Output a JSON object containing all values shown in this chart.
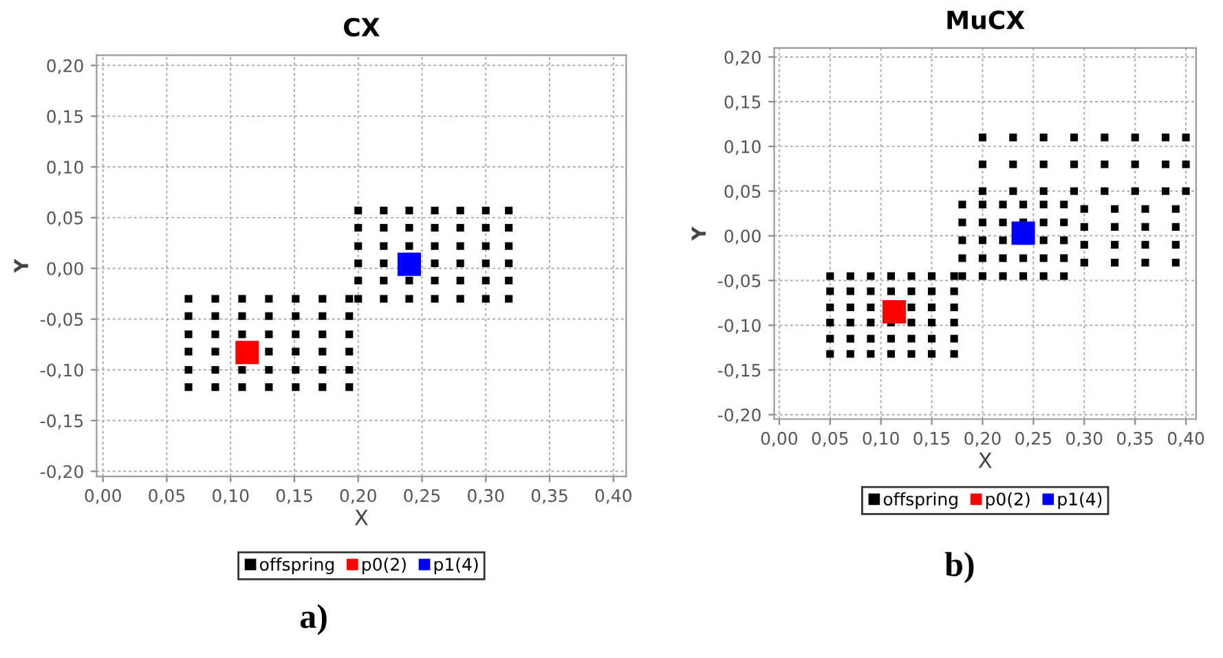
{
  "chart_data": [
    {
      "type": "scatter",
      "title": "CX",
      "xlabel": "X",
      "ylabel": "Y",
      "xlim": [
        -0.005,
        0.41
      ],
      "ylim": [
        -0.205,
        0.21
      ],
      "xticks": [
        {
          "value": 0,
          "label": "0,00"
        },
        {
          "value": 0.05,
          "label": "0,05"
        },
        {
          "value": 0.1,
          "label": "0,10"
        },
        {
          "value": 0.15,
          "label": "0,15"
        },
        {
          "value": 0.2,
          "label": "0,20"
        },
        {
          "value": 0.25,
          "label": "0,25"
        },
        {
          "value": 0.3,
          "label": "0,30"
        },
        {
          "value": 0.35,
          "label": "0,35"
        },
        {
          "value": 0.4,
          "label": "0,40"
        }
      ],
      "yticks": [
        {
          "value": -0.2,
          "label": "-0,20"
        },
        {
          "value": -0.15,
          "label": "-0,15"
        },
        {
          "value": -0.1,
          "label": "-0,10"
        },
        {
          "value": -0.05,
          "label": "-0,05"
        },
        {
          "value": 0,
          "label": "0,00"
        },
        {
          "value": 0.05,
          "label": "0,05"
        },
        {
          "value": 0.1,
          "label": "0,10"
        },
        {
          "value": 0.15,
          "label": "0,15"
        },
        {
          "value": 0.2,
          "label": "0,20"
        }
      ],
      "grid": true,
      "legend": "bottom",
      "marker": "square",
      "annotations": [
        "a)"
      ],
      "series": [
        {
          "name": "offspring",
          "color": "#000000",
          "x": [
            0.067,
            0.088,
            0.109,
            0.13,
            0.151,
            0.172,
            0.193,
            0.067,
            0.088,
            0.109,
            0.13,
            0.151,
            0.172,
            0.193,
            0.067,
            0.088,
            0.13,
            0.151,
            0.172,
            0.193,
            0.067,
            0.088,
            0.109,
            0.13,
            0.151,
            0.172,
            0.193,
            0.067,
            0.088,
            0.109,
            0.13,
            0.151,
            0.172,
            0.193,
            0.067,
            0.088,
            0.109,
            0.13,
            0.151,
            0.172,
            0.193,
            0.2,
            0.22,
            0.24,
            0.26,
            0.28,
            0.3,
            0.318,
            0.2,
            0.22,
            0.24,
            0.26,
            0.28,
            0.3,
            0.318,
            0.2,
            0.22,
            0.26,
            0.28,
            0.3,
            0.318,
            0.2,
            0.22,
            0.24,
            0.26,
            0.28,
            0.3,
            0.318,
            0.2,
            0.22,
            0.24,
            0.26,
            0.28,
            0.3,
            0.318,
            0.2,
            0.22,
            0.24,
            0.26,
            0.28,
            0.3,
            0.318
          ],
          "values": [
            -0.117,
            -0.117,
            -0.117,
            -0.117,
            -0.117,
            -0.117,
            -0.117,
            -0.1,
            -0.1,
            -0.1,
            -0.1,
            -0.1,
            -0.1,
            -0.1,
            -0.082,
            -0.082,
            -0.082,
            -0.082,
            -0.082,
            -0.082,
            -0.065,
            -0.065,
            -0.065,
            -0.065,
            -0.065,
            -0.065,
            -0.065,
            -0.047,
            -0.047,
            -0.047,
            -0.047,
            -0.047,
            -0.047,
            -0.047,
            -0.03,
            -0.03,
            -0.03,
            -0.03,
            -0.03,
            -0.03,
            -0.03,
            -0.03,
            -0.03,
            -0.03,
            -0.03,
            -0.03,
            -0.03,
            -0.03,
            -0.012,
            -0.012,
            -0.012,
            -0.012,
            -0.012,
            -0.012,
            -0.012,
            0.005,
            0.005,
            0.005,
            0.005,
            0.005,
            0.005,
            0.022,
            0.022,
            0.022,
            0.022,
            0.022,
            0.022,
            0.022,
            0.04,
            0.04,
            0.04,
            0.04,
            0.04,
            0.04,
            0.04,
            0.057,
            0.057,
            0.057,
            0.057,
            0.057,
            0.057,
            0.057
          ]
        },
        {
          "name": "p0(2)",
          "color": "#ff0000",
          "x": [
            0.113
          ],
          "values": [
            -0.083
          ]
        },
        {
          "name": "p1(4)",
          "color": "#0000ff",
          "x": [
            0.24
          ],
          "values": [
            0.004
          ]
        }
      ]
    },
    {
      "type": "scatter",
      "title": "MuCX",
      "xlabel": "X",
      "ylabel": "Y",
      "xlim": [
        -0.005,
        0.41
      ],
      "ylim": [
        -0.205,
        0.21
      ],
      "xticks": [
        {
          "value": 0,
          "label": "0,00"
        },
        {
          "value": 0.05,
          "label": "0,05"
        },
        {
          "value": 0.1,
          "label": "0,10"
        },
        {
          "value": 0.15,
          "label": "0,15"
        },
        {
          "value": 0.2,
          "label": "0,20"
        },
        {
          "value": 0.25,
          "label": "0,25"
        },
        {
          "value": 0.3,
          "label": "0,30"
        },
        {
          "value": 0.35,
          "label": "0,35"
        },
        {
          "value": 0.4,
          "label": "0,40"
        }
      ],
      "yticks": [
        {
          "value": -0.2,
          "label": "-0,20"
        },
        {
          "value": -0.15,
          "label": "-0,15"
        },
        {
          "value": -0.1,
          "label": "-0,10"
        },
        {
          "value": -0.05,
          "label": "-0,05"
        },
        {
          "value": 0,
          "label": "0,00"
        },
        {
          "value": 0.05,
          "label": "0,05"
        },
        {
          "value": 0.1,
          "label": "0,10"
        },
        {
          "value": 0.15,
          "label": "0,15"
        },
        {
          "value": 0.2,
          "label": "0,20"
        }
      ],
      "grid": true,
      "legend": "bottom",
      "marker": "square",
      "annotations": [
        "b)"
      ],
      "series": [
        {
          "name": "offspring",
          "color": "#000000",
          "x": [
            0.05,
            0.07,
            0.09,
            0.11,
            0.13,
            0.15,
            0.172,
            0.05,
            0.07,
            0.09,
            0.11,
            0.13,
            0.15,
            0.172,
            0.05,
            0.07,
            0.09,
            0.11,
            0.13,
            0.15,
            0.172,
            0.05,
            0.07,
            0.09,
            0.13,
            0.15,
            0.172,
            0.05,
            0.07,
            0.09,
            0.11,
            0.13,
            0.15,
            0.172,
            0.05,
            0.07,
            0.09,
            0.11,
            0.13,
            0.15,
            0.172,
            0.18,
            0.2,
            0.22,
            0.24,
            0.26,
            0.28,
            0.18,
            0.2,
            0.22,
            0.24,
            0.26,
            0.28,
            0.18,
            0.2,
            0.22,
            0.26,
            0.28,
            0.18,
            0.2,
            0.22,
            0.24,
            0.26,
            0.28,
            0.18,
            0.2,
            0.22,
            0.24,
            0.26,
            0.28,
            0.2,
            0.23,
            0.26,
            0.29,
            0.32,
            0.35,
            0.38,
            0.4,
            0.2,
            0.23,
            0.26,
            0.29,
            0.32,
            0.35,
            0.38,
            0.4,
            0.2,
            0.23,
            0.26,
            0.29,
            0.32,
            0.35,
            0.38,
            0.4,
            0.3,
            0.33,
            0.36,
            0.39,
            0.3,
            0.33,
            0.36,
            0.39,
            0.3,
            0.33,
            0.36,
            0.39,
            0.3,
            0.33,
            0.36,
            0.39
          ],
          "values": [
            -0.132,
            -0.132,
            -0.132,
            -0.132,
            -0.132,
            -0.132,
            -0.132,
            -0.115,
            -0.115,
            -0.115,
            -0.115,
            -0.115,
            -0.115,
            -0.115,
            -0.097,
            -0.097,
            -0.097,
            -0.097,
            -0.097,
            -0.097,
            -0.097,
            -0.08,
            -0.08,
            -0.08,
            -0.08,
            -0.08,
            -0.08,
            -0.062,
            -0.062,
            -0.062,
            -0.062,
            -0.062,
            -0.062,
            -0.062,
            -0.045,
            -0.045,
            -0.045,
            -0.045,
            -0.045,
            -0.045,
            -0.045,
            -0.045,
            -0.045,
            -0.045,
            -0.045,
            -0.045,
            -0.045,
            -0.025,
            -0.025,
            -0.025,
            -0.025,
            -0.025,
            -0.025,
            -0.005,
            -0.005,
            -0.005,
            -0.005,
            -0.005,
            0.015,
            0.015,
            0.015,
            0.015,
            0.015,
            0.015,
            0.035,
            0.035,
            0.035,
            0.035,
            0.035,
            0.035,
            0.05,
            0.05,
            0.05,
            0.05,
            0.05,
            0.05,
            0.05,
            0.05,
            0.08,
            0.08,
            0.08,
            0.08,
            0.08,
            0.08,
            0.08,
            0.08,
            0.11,
            0.11,
            0.11,
            0.11,
            0.11,
            0.11,
            0.11,
            0.11,
            -0.03,
            -0.03,
            -0.03,
            -0.03,
            -0.01,
            -0.01,
            -0.01,
            -0.01,
            0.01,
            0.01,
            0.01,
            0.01,
            0.03,
            0.03,
            0.03,
            0.03
          ]
        },
        {
          "name": "p0(2)",
          "color": "#ff0000",
          "x": [
            0.113
          ],
          "values": [
            -0.085
          ]
        },
        {
          "name": "p1(4)",
          "color": "#0000ff",
          "x": [
            0.24
          ],
          "values": [
            0.003
          ]
        }
      ]
    }
  ]
}
